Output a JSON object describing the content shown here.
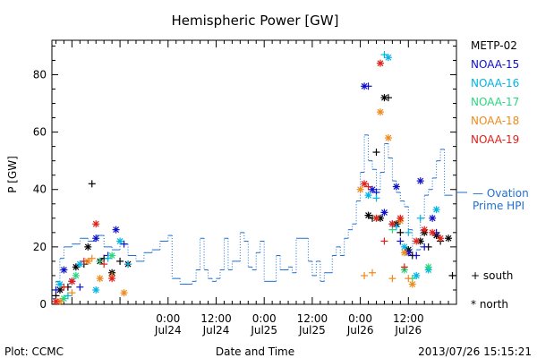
{
  "chart_data": {
    "type": "scatter",
    "title": "Hemispheric Power [GW]",
    "ylabel": "P [GW]",
    "xlabel": "Date and Time",
    "ylim": [
      0,
      92
    ],
    "xlim": [
      -29,
      72
    ],
    "yticks": [
      0,
      20,
      40,
      60,
      80
    ],
    "xticks": [
      {
        "x": 0,
        "line1": "0:00",
        "line2": "Jul24"
      },
      {
        "x": 12,
        "line1": "12:00",
        "line2": "Jul24"
      },
      {
        "x": 24,
        "line1": "0:00",
        "line2": "Jul25"
      },
      {
        "x": 36,
        "line1": "12:00",
        "line2": "Jul25"
      },
      {
        "x": 48,
        "line1": "0:00",
        "line2": "Jul26"
      },
      {
        "x": 60,
        "line1": "12:00",
        "line2": "Jul26"
      }
    ],
    "footer_left": "Plot: CCMC",
    "footer_right": "2013/07/26 15:15:21",
    "marker_legend": {
      "south": "+ south",
      "north": "* north"
    },
    "ovation_legend": {
      "line1": "— Ovation",
      "line2": "Prime HPI",
      "value": 38,
      "color": "#1e6fd0"
    },
    "ovation": {
      "name": "Ovation Prime HPI",
      "color": "#1e6fd0",
      "points": [
        [
          -29,
          2
        ],
        [
          -28,
          8
        ],
        [
          -27,
          16
        ],
        [
          -26,
          20
        ],
        [
          -24,
          21
        ],
        [
          -22,
          23
        ],
        [
          -20,
          22
        ],
        [
          -18,
          24
        ],
        [
          -16,
          20
        ],
        [
          -14,
          19
        ],
        [
          -12,
          21
        ],
        [
          -10,
          17
        ],
        [
          -8,
          15
        ],
        [
          -6,
          18
        ],
        [
          -4,
          19
        ],
        [
          -2,
          22
        ],
        [
          0,
          24
        ],
        [
          1,
          9
        ],
        [
          3,
          7
        ],
        [
          6,
          8
        ],
        [
          7,
          12
        ],
        [
          8,
          23
        ],
        [
          9,
          12
        ],
        [
          10,
          9
        ],
        [
          11,
          8
        ],
        [
          12,
          9
        ],
        [
          13,
          12
        ],
        [
          14,
          23
        ],
        [
          15,
          12
        ],
        [
          16,
          15
        ],
        [
          17,
          15
        ],
        [
          18,
          25
        ],
        [
          19,
          22
        ],
        [
          20,
          13
        ],
        [
          21,
          12
        ],
        [
          22,
          18
        ],
        [
          23,
          22
        ],
        [
          24,
          8
        ],
        [
          27,
          17
        ],
        [
          28,
          12
        ],
        [
          30,
          13
        ],
        [
          31,
          11
        ],
        [
          32,
          23
        ],
        [
          35,
          15
        ],
        [
          36,
          10
        ],
        [
          37,
          15
        ],
        [
          38,
          8
        ],
        [
          39,
          11
        ],
        [
          40,
          11
        ],
        [
          41,
          17
        ],
        [
          42,
          20
        ],
        [
          43,
          17
        ],
        [
          44,
          23
        ],
        [
          45,
          26
        ],
        [
          46,
          28
        ],
        [
          47,
          36
        ],
        [
          48,
          46
        ],
        [
          49,
          59
        ],
        [
          50,
          50
        ],
        [
          51,
          47
        ],
        [
          52,
          40
        ],
        [
          53,
          46
        ],
        [
          54,
          56
        ],
        [
          55,
          51
        ],
        [
          56,
          43
        ],
        [
          57,
          39
        ],
        [
          58,
          36
        ],
        [
          59,
          34
        ],
        [
          60,
          26
        ],
        [
          61,
          17
        ],
        [
          62,
          19
        ],
        [
          63,
          30
        ],
        [
          64,
          38
        ],
        [
          65,
          40
        ],
        [
          66,
          44
        ],
        [
          67,
          50
        ],
        [
          68,
          54
        ],
        [
          69,
          38
        ],
        [
          71,
          38
        ]
      ]
    },
    "series": [
      {
        "name": "METP-02",
        "color": "#000000",
        "points": [
          [
            -28,
            3,
            "south"
          ],
          [
            -27,
            5,
            "north"
          ],
          [
            -25,
            6,
            "south"
          ],
          [
            -23,
            13,
            "north"
          ],
          [
            -21,
            14,
            "south"
          ],
          [
            -20,
            20,
            "north"
          ],
          [
            -19,
            42,
            "south"
          ],
          [
            -17,
            15,
            "north"
          ],
          [
            -16,
            16,
            "south"
          ],
          [
            -14,
            11,
            "north"
          ],
          [
            -12,
            15,
            "south"
          ],
          [
            -10,
            14,
            "north"
          ],
          [
            50,
            31,
            "north"
          ],
          [
            51,
            30,
            "south"
          ],
          [
            52,
            53,
            "south"
          ],
          [
            53,
            30,
            "north"
          ],
          [
            54,
            72,
            "north"
          ],
          [
            55,
            72,
            "south"
          ],
          [
            57,
            28,
            "north"
          ],
          [
            58,
            25,
            "south"
          ],
          [
            60,
            19,
            "north"
          ],
          [
            61,
            17,
            "south"
          ],
          [
            63,
            22,
            "north"
          ],
          [
            64,
            25,
            "north"
          ],
          [
            65,
            20,
            "south"
          ],
          [
            67,
            24,
            "north"
          ],
          [
            68,
            22,
            "south"
          ],
          [
            70,
            23,
            "north"
          ],
          [
            71,
            10,
            "south"
          ]
        ]
      },
      {
        "name": "NOAA-15",
        "color": "#1010c8",
        "points": [
          [
            -28,
            5,
            "south"
          ],
          [
            -26,
            12,
            "north"
          ],
          [
            -24,
            8,
            "north"
          ],
          [
            -22,
            6,
            "south"
          ],
          [
            -18,
            23,
            "north"
          ],
          [
            -15,
            17,
            "south"
          ],
          [
            -13,
            26,
            "north"
          ],
          [
            -11,
            21,
            "south"
          ],
          [
            49,
            76,
            "north"
          ],
          [
            50,
            76,
            "south"
          ],
          [
            51,
            40,
            "north"
          ],
          [
            52,
            39,
            "south"
          ],
          [
            54,
            32,
            "north"
          ],
          [
            56,
            28,
            "south"
          ],
          [
            57,
            41,
            "north"
          ],
          [
            58,
            22,
            "south"
          ],
          [
            60,
            18,
            "north"
          ],
          [
            62,
            17,
            "south"
          ],
          [
            63,
            43,
            "north"
          ],
          [
            64,
            20,
            "south"
          ],
          [
            66,
            30,
            "north"
          ],
          [
            67,
            25,
            "south"
          ]
        ]
      },
      {
        "name": "NOAA-16",
        "color": "#00b4e6",
        "points": [
          [
            -27,
            7,
            "north"
          ],
          [
            -25,
            3,
            "south"
          ],
          [
            -22,
            14,
            "north"
          ],
          [
            -18,
            5,
            "north"
          ],
          [
            -15,
            16,
            "south"
          ],
          [
            -12,
            22,
            "north"
          ],
          [
            -10,
            14,
            "south"
          ],
          [
            50,
            38,
            "north"
          ],
          [
            52,
            37,
            "south"
          ],
          [
            54,
            87,
            "south"
          ],
          [
            55,
            86,
            "north"
          ],
          [
            57,
            27,
            "south"
          ],
          [
            59,
            20,
            "north"
          ],
          [
            60,
            25,
            "south"
          ],
          [
            62,
            10,
            "north"
          ],
          [
            63,
            30,
            "south"
          ],
          [
            65,
            12,
            "north"
          ],
          [
            67,
            33,
            "north"
          ]
        ]
      },
      {
        "name": "NOAA-17",
        "color": "#2ad680",
        "points": [
          [
            -26,
            2,
            "north"
          ],
          [
            -23,
            10,
            "north"
          ],
          [
            -17,
            15,
            "south"
          ],
          [
            -14,
            17,
            "north"
          ],
          [
            52,
            30,
            "north"
          ],
          [
            56,
            26,
            "south"
          ],
          [
            59,
            12,
            "north"
          ],
          [
            61,
            9,
            "south"
          ],
          [
            65,
            13,
            "north"
          ]
        ]
      },
      {
        "name": "NOAA-18",
        "color": "#ee8a1c",
        "points": [
          [
            -27,
            1,
            "north"
          ],
          [
            -24,
            4,
            "south"
          ],
          [
            -20,
            15,
            "north"
          ],
          [
            -19,
            16,
            "south"
          ],
          [
            -17,
            9,
            "north"
          ],
          [
            -14,
            10,
            "south"
          ],
          [
            -11,
            4,
            "north"
          ],
          [
            48,
            40,
            "north"
          ],
          [
            49,
            10,
            "south"
          ],
          [
            51,
            11,
            "south"
          ],
          [
            53,
            67,
            "north"
          ],
          [
            55,
            58,
            "north"
          ],
          [
            56,
            9,
            "south"
          ],
          [
            58,
            29,
            "north"
          ],
          [
            59,
            18,
            "north"
          ],
          [
            60,
            9,
            "south"
          ],
          [
            61,
            7,
            "north"
          ]
        ]
      },
      {
        "name": "NOAA-19",
        "color": "#e0201a",
        "points": [
          [
            -28,
            1,
            "north"
          ],
          [
            -26,
            6,
            "south"
          ],
          [
            -24,
            8,
            "north"
          ],
          [
            -21,
            15,
            "south"
          ],
          [
            -18,
            28,
            "north"
          ],
          [
            -16,
            14,
            "south"
          ],
          [
            -14,
            9,
            "north"
          ],
          [
            49,
            42,
            "north"
          ],
          [
            50,
            41,
            "south"
          ],
          [
            52,
            30,
            "north"
          ],
          [
            53,
            84,
            "north"
          ],
          [
            54,
            22,
            "south"
          ],
          [
            56,
            28,
            "north"
          ],
          [
            58,
            30,
            "north"
          ],
          [
            59,
            13,
            "south"
          ],
          [
            62,
            22,
            "north"
          ],
          [
            64,
            26,
            "north"
          ],
          [
            66,
            25,
            "north"
          ],
          [
            68,
            23,
            "north"
          ]
        ]
      }
    ]
  }
}
